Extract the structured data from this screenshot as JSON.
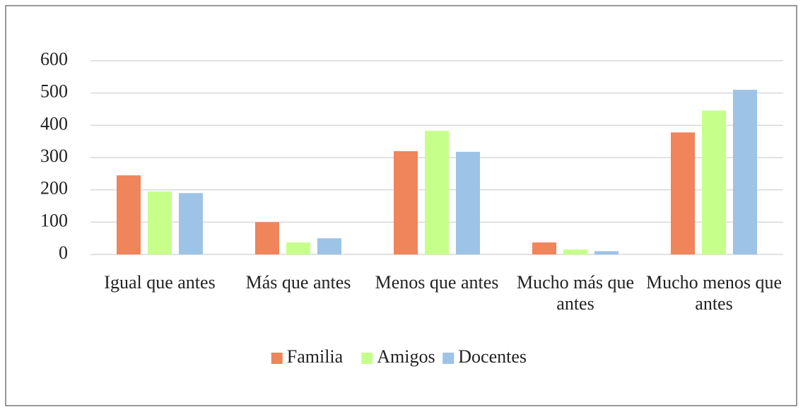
{
  "chart_data": {
    "type": "bar",
    "categories": [
      "Igual que antes",
      "Más que antes",
      "Menos que antes",
      "Mucho más que antes",
      "Mucho menos que antes"
    ],
    "series": [
      {
        "name": "Familia",
        "color": "#f0845a",
        "values": [
          245,
          100,
          320,
          37,
          378
        ]
      },
      {
        "name": "Amigos",
        "color": "#c6ff8a",
        "values": [
          195,
          37,
          383,
          15,
          446
        ]
      },
      {
        "name": "Docentes",
        "color": "#9dc3e6",
        "values": [
          190,
          50,
          318,
          10,
          510
        ]
      }
    ],
    "ylim": [
      0,
      600
    ],
    "yticks": [
      0,
      100,
      200,
      300,
      400,
      500,
      600
    ],
    "grid": true,
    "legend": "bottom"
  }
}
